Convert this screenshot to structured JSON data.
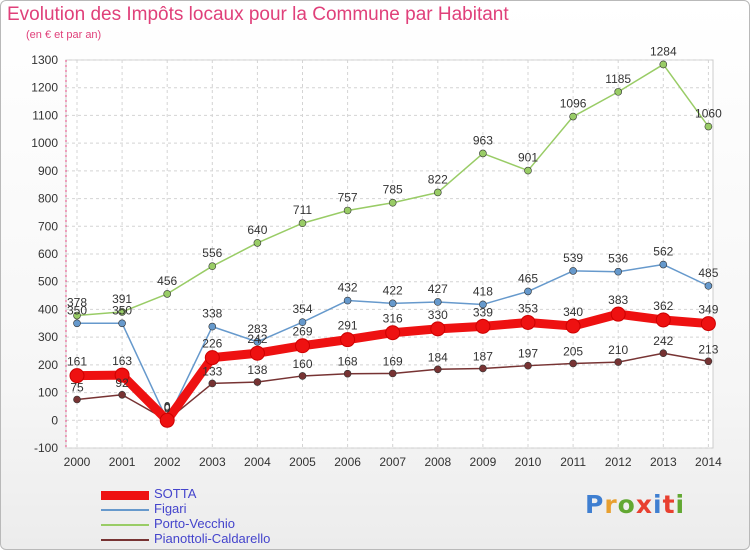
{
  "title": "Evolution des Impôts locaux pour la Commune par Habitant",
  "subtitle": "(en € et par an)",
  "logo": {
    "text": "Proxiti",
    "letter_colors": [
      "#3f7fd1",
      "#e8a030",
      "#62a832",
      "#e84030",
      "#3f7fd1",
      "#e84030",
      "#62a832"
    ]
  },
  "chart_data": {
    "type": "line",
    "x": [
      "2000",
      "2001",
      "2002",
      "2003",
      "2004",
      "2005",
      "2006",
      "2007",
      "2008",
      "2009",
      "2010",
      "2011",
      "2012",
      "2013",
      "2014"
    ],
    "ylim": [
      -100,
      1300
    ],
    "yticks": [
      "-100",
      "0",
      "100",
      "200",
      "300",
      "400",
      "500",
      "600",
      "700",
      "800",
      "900",
      "1000",
      "1100",
      "1200",
      "1300"
    ],
    "grid": true,
    "legend_position": "bottom-left",
    "series": [
      {
        "name": "SOTTA",
        "color": "#ee1111",
        "values": [
          161,
          163,
          0,
          226,
          242,
          269,
          291,
          316,
          330,
          339,
          353,
          340,
          383,
          362,
          349
        ],
        "labels": [
          "161",
          "163",
          "0",
          "226",
          "242",
          "269",
          "291",
          "316",
          "330",
          "339",
          "353",
          "340",
          "383",
          "362",
          "349"
        ]
      },
      {
        "name": "Figari",
        "color": "#6699cc",
        "values": [
          350,
          350,
          0,
          338,
          283,
          354,
          432,
          422,
          427,
          418,
          465,
          539,
          536,
          562,
          485
        ],
        "labels": [
          "350",
          "350",
          "0",
          "338",
          "283",
          "354",
          "432",
          "422",
          "427",
          "418",
          "465",
          "539",
          "536",
          "562",
          "485"
        ]
      },
      {
        "name": "Porto-Vecchio",
        "color": "#99cc66",
        "values": [
          378,
          391,
          456,
          556,
          640,
          711,
          757,
          785,
          822,
          963,
          901,
          1096,
          1185,
          1284,
          1060
        ],
        "labels": [
          "378",
          "391",
          "456",
          "556",
          "640",
          "711",
          "757",
          "785",
          "822",
          "963",
          "901",
          "1096",
          "1185",
          "1284",
          "1060"
        ]
      },
      {
        "name": "Pianottoli-Caldarello",
        "color": "#773333",
        "values": [
          75,
          92,
          0,
          133,
          138,
          160,
          168,
          169,
          184,
          187,
          197,
          205,
          210,
          242,
          213
        ],
        "labels": [
          "75",
          "92",
          "0",
          "133",
          "138",
          "160",
          "168",
          "169",
          "184",
          "187",
          "197",
          "205",
          "210",
          "242",
          "213"
        ]
      }
    ]
  }
}
